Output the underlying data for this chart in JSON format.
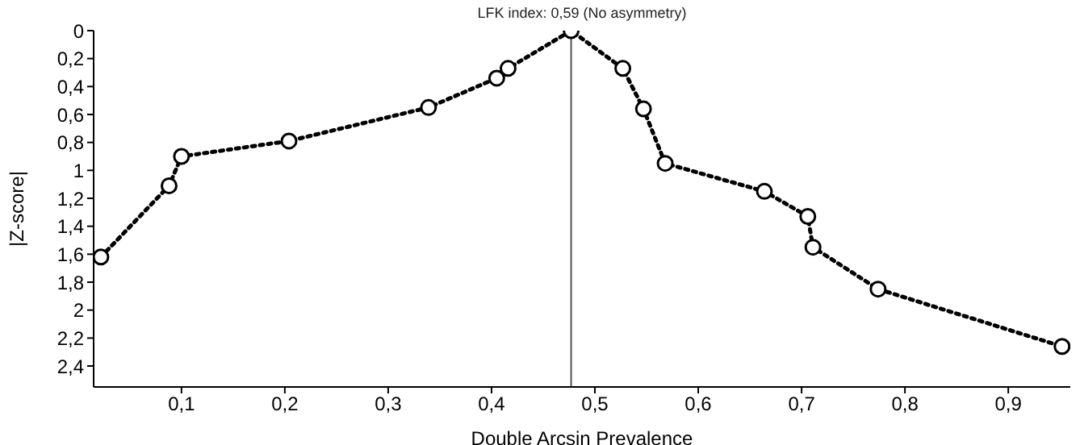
{
  "chart_data": {
    "type": "line",
    "title": "LFK index: 0,59 (No asymmetry)",
    "xlabel": "Double Arcsin Prevalence",
    "ylabel": "|Z-score|",
    "series": [
      {
        "color": "#000000",
        "x": [
          0.022,
          0.088,
          0.1,
          0.204,
          0.339,
          0.405,
          0.416,
          0.477,
          0.527,
          0.547,
          0.568,
          0.664,
          0.706,
          0.711,
          0.774,
          0.952
        ],
        "values": [
          1.62,
          1.11,
          0.9,
          0.79,
          0.55,
          0.34,
          0.27,
          0,
          0.27,
          0.56,
          0.95,
          1.15,
          1.33,
          1.55,
          1.85,
          2.26
        ]
      }
    ],
    "xlim": [
      0.015,
      0.96
    ],
    "xticks": [
      {
        "value": 0.1,
        "label": "0,1"
      },
      {
        "value": 0.2,
        "label": "0,2"
      },
      {
        "value": 0.3,
        "label": "0,3"
      },
      {
        "value": 0.4,
        "label": "0,4"
      },
      {
        "value": 0.5,
        "label": "0,5"
      },
      {
        "value": 0.6,
        "label": "0,6"
      },
      {
        "value": 0.7,
        "label": "0,7"
      },
      {
        "value": 0.8,
        "label": "0,8"
      },
      {
        "value": 0.9,
        "label": "0,9"
      }
    ],
    "ylim": [
      2.55,
      0
    ],
    "yticks": [
      0,
      {
        "value": 0.2,
        "label": "0,2"
      },
      {
        "value": 0.4,
        "label": "0,4"
      },
      {
        "value": 0.6,
        "label": "0,6"
      },
      {
        "value": 0.8,
        "label": "0,8"
      },
      1,
      {
        "value": 1.2,
        "label": "1,2"
      },
      {
        "value": 1.4,
        "label": "1,4"
      },
      {
        "value": 1.6,
        "label": "1,6"
      },
      {
        "value": 1.8,
        "label": "1,8"
      },
      2,
      {
        "value": 2.2,
        "label": "2,2"
      },
      {
        "value": 2.4,
        "label": "2,4"
      }
    ],
    "ref_lines": [
      {
        "axis": "x",
        "value": 0.477,
        "color": "#555555"
      }
    ],
    "marker": "circle",
    "line_style": "dotted",
    "grid": false,
    "legend": false
  }
}
